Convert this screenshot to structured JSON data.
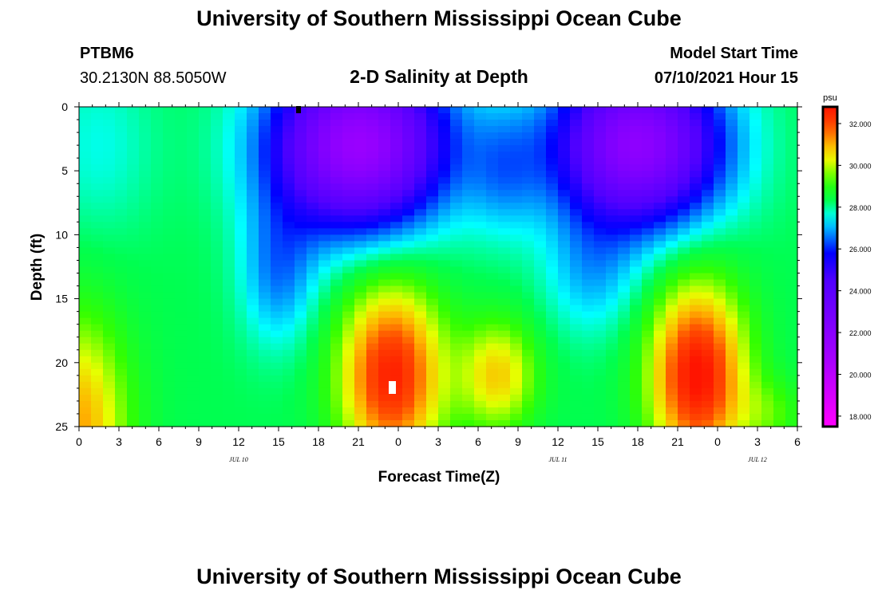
{
  "header": {
    "title": "University of Southern Mississippi Ocean Cube",
    "station_id": "PTBM6",
    "station_coords": "30.2130N  88.5050W",
    "plot_title": "2-D Salinity at Depth",
    "model_start_label": "Model Start Time",
    "model_start_value": "07/10/2021 Hour 15"
  },
  "footer": {
    "title": "University of Southern Mississippi Ocean Cube"
  },
  "chart_data": {
    "type": "heatmap",
    "title": "2-D Salinity at Depth",
    "xlabel": "Forecast Time(Z)",
    "ylabel": "Depth (ft)",
    "ylim": [
      0,
      25
    ],
    "xlim": [
      0,
      54
    ],
    "x_tick_labels": [
      "0",
      "3",
      "6",
      "9",
      "12",
      "15",
      "18",
      "21",
      "0",
      "3",
      "6",
      "9",
      "12",
      "15",
      "18",
      "21",
      "0",
      "3",
      "6"
    ],
    "y_tick_labels": [
      "0",
      "5",
      "10",
      "15",
      "20",
      "25"
    ],
    "date_labels": [
      {
        "text": "JUL 10",
        "x": 12
      },
      {
        "text": "JUL 11",
        "x": 36
      },
      {
        "text": "JUL 12",
        "x": 51
      }
    ],
    "colorbar": {
      "unit": "psu",
      "range": [
        17.5,
        32.8
      ],
      "tick_labels": [
        "32.000",
        "30.000",
        "28.000",
        "26.000",
        "24.000",
        "22.000",
        "20.000",
        "18.000"
      ],
      "tick_values": [
        32,
        30,
        28,
        26,
        24,
        22,
        20,
        18
      ]
    },
    "colors": {
      "magenta": "#ff00ff",
      "purple": "#9900ff",
      "blue": "#0000ff",
      "cyan": "#00ffff",
      "green": "#00ff00",
      "yellow": "#ffff00",
      "orange": "#ff9900",
      "red": "#ff2200"
    }
  }
}
